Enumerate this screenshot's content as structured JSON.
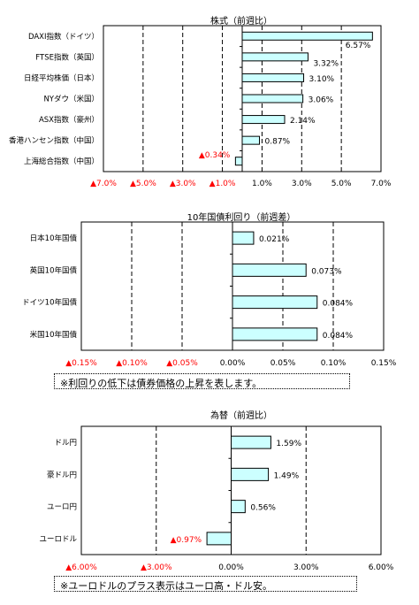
{
  "colors": {
    "bar_fill": "#ccffff",
    "bar_stroke": "#000000",
    "negative_text": "#ff0000"
  },
  "chart_data": [
    {
      "type": "bar",
      "orientation": "horizontal",
      "title": "株式（前週比）",
      "categories": [
        "DAXI指数（ドイツ）",
        "FTSE指数（英国）",
        "日経平均株価（日本）",
        "NYダウ（米国）",
        "ASX指数（豪州）",
        "香港ハンセン指数（中国）",
        "上海総合指数（中国）"
      ],
      "values": [
        6.57,
        3.32,
        3.1,
        3.06,
        2.14,
        0.87,
        -0.34
      ],
      "value_labels": [
        "6.57%",
        "3.32%",
        "3.10%",
        "3.06%",
        "2.14%",
        "0.87%",
        "▲0.34%"
      ],
      "xlim": [
        -7.0,
        7.0
      ],
      "ticks": [
        -7,
        -5,
        -3,
        -1,
        1,
        3,
        5,
        7
      ],
      "tick_labels": [
        "▲7.0%",
        "▲5.0%",
        "▲3.0%",
        "▲1.0%",
        "1.0%",
        "3.0%",
        "5.0%",
        "7.0%"
      ],
      "grid": "vertical-dashed",
      "note": ""
    },
    {
      "type": "bar",
      "orientation": "horizontal",
      "title": "10年国債利回り（前週差）",
      "categories": [
        "日本10年国債",
        "英国10年国債",
        "ドイツ10年国債",
        "米国10年国債"
      ],
      "values": [
        0.021,
        0.073,
        0.084,
        0.084
      ],
      "value_labels": [
        "0.021%",
        "0.073%",
        "0.084%",
        "0.084%"
      ],
      "xlim": [
        -0.15,
        0.15
      ],
      "ticks": [
        -0.15,
        -0.1,
        -0.05,
        0.0,
        0.05,
        0.1,
        0.15
      ],
      "tick_labels": [
        "▲0.15%",
        "▲0.10%",
        "▲0.05%",
        "0.00%",
        "0.05%",
        "0.10%",
        "0.15%"
      ],
      "grid": "vertical-dashed",
      "note": "※利回りの低下は債券価格の上昇を表します。"
    },
    {
      "type": "bar",
      "orientation": "horizontal",
      "title": "為替（前週比）",
      "categories": [
        "ドル円",
        "豪ドル円",
        "ユーロ円",
        "ユーロドル"
      ],
      "values": [
        1.59,
        1.49,
        0.56,
        -0.97
      ],
      "value_labels": [
        "1.59%",
        "1.49%",
        "0.56%",
        "▲0.97%"
      ],
      "xlim": [
        -6.0,
        6.0
      ],
      "ticks": [
        -6,
        -3,
        0,
        3,
        6
      ],
      "tick_labels": [
        "▲6.00%",
        "▲3.00%",
        "0.00%",
        "3.00%",
        "6.00%"
      ],
      "grid": "vertical-dashed",
      "note": "※ユーロドルのプラス表示はユーロ高・ドル安。"
    }
  ]
}
